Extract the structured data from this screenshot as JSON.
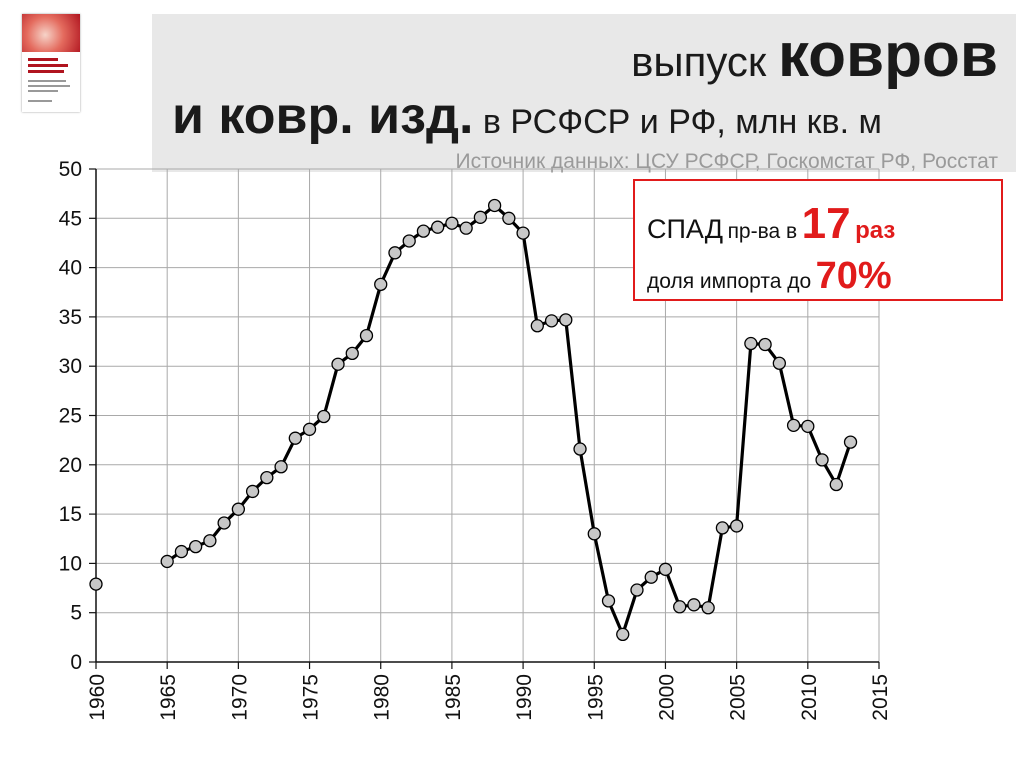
{
  "title": {
    "line1_prefix": "выпуск",
    "line1_bold": "ковров",
    "line2_bold": "и ковр. изд.",
    "line2_rest": "в РСФСР и РФ, млн кв. м",
    "source": "Источник данных: ЦСУ РСФСР, Госкомстат РФ, Росстат"
  },
  "callout": {
    "decline_word": "СПАД",
    "decline_mid": "пр-ва в",
    "decline_number": "17",
    "decline_unit": "раз",
    "import_text": "доля импорта до",
    "import_value": "70%"
  },
  "colors": {
    "accent": "#e11b1b",
    "title_panel": "#e8e8e8",
    "marker_fill": "#c8c8c8"
  },
  "chart_data": {
    "type": "line",
    "xlim": [
      1960,
      2015
    ],
    "ylim": [
      0,
      50
    ],
    "x_ticks": [
      1960,
      1965,
      1970,
      1975,
      1980,
      1985,
      1990,
      1995,
      2000,
      2005,
      2010,
      2015
    ],
    "y_ticks": [
      0,
      5,
      10,
      15,
      20,
      25,
      30,
      35,
      40,
      45,
      50
    ],
    "grid": true,
    "series": [
      {
        "x": [
          1960
        ],
        "y": [
          7.9
        ]
      },
      {
        "x": [
          1965,
          1966,
          1967,
          1968,
          1969,
          1970,
          1971,
          1972,
          1973,
          1974,
          1975,
          1976,
          1977,
          1978,
          1979,
          1980,
          1981,
          1982,
          1983,
          1984,
          1985,
          1986,
          1987,
          1988,
          1989,
          1990,
          1991,
          1992,
          1993,
          1994,
          1995,
          1996,
          1997,
          1998,
          1999,
          2000,
          2001,
          2002,
          2003,
          2004,
          2005,
          2006,
          2007,
          2008,
          2009,
          2010,
          2011,
          2012,
          2013
        ],
        "y": [
          10.2,
          11.2,
          11.7,
          12.3,
          14.1,
          15.5,
          17.3,
          18.7,
          19.8,
          22.7,
          23.6,
          24.9,
          30.2,
          31.3,
          33.1,
          38.3,
          41.5,
          42.7,
          43.7,
          44.1,
          44.5,
          44.0,
          45.1,
          46.3,
          45.0,
          43.5,
          34.1,
          34.6,
          34.7,
          21.6,
          13.0,
          6.2,
          2.8,
          7.3,
          8.6,
          9.4,
          5.6,
          5.8,
          5.5,
          13.6,
          13.8,
          32.3,
          32.2,
          30.3,
          24.0,
          23.9,
          20.5,
          18.0,
          22.3
        ]
      }
    ]
  }
}
